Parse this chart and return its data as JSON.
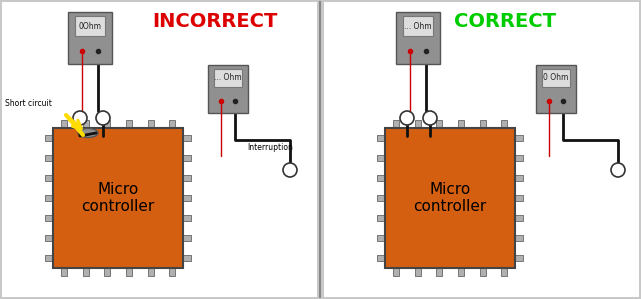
{
  "background_color": "#c8c8c8",
  "panel_color": "#ffffff",
  "divider_color": "#888888",
  "left_title": "INCORRECT",
  "left_title_color": "#dd0000",
  "right_title": "CORRECT",
  "right_title_color": "#00cc00",
  "chip_color": "#d45f10",
  "chip_border_color": "#444444",
  "chip_text": "Micro\ncontroller",
  "chip_text_color": "#000000",
  "chip_text_fontsize": 11,
  "meter_body_color": "#909090",
  "meter_screen_color": "#dddddd",
  "meter_border_color": "#555555",
  "pin_color": "#b0b0b0",
  "pin_border_color": "#666666",
  "wire_color": "#111111",
  "wire_lw": 2.0,
  "red_wire_color": "#cc0000",
  "red_wire_lw": 1.0,
  "probe_circle_color": "#ffffff",
  "probe_circle_border": "#333333",
  "short_blob_color": "#909090",
  "short_blob_border": "#555555",
  "yellow_arrow_color": "#ffdd00",
  "short_circuit_label": "Short circuit",
  "interruption_label": "Interruption",
  "left_meter1_label": "0Ohm",
  "left_meter2_label": "... Ohm",
  "right_meter1_label": "... Ohm",
  "right_meter2_label": "0 Ohm",
  "title_fontsize": 14,
  "label_fontsize": 5.5
}
